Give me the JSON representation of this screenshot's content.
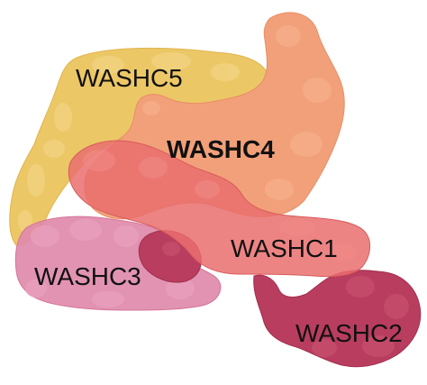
{
  "diagram": {
    "subunits": [
      {
        "id": "washc5",
        "label": "WASHC5",
        "color": "#ecc766",
        "emphasized": false
      },
      {
        "id": "washc4",
        "label": "WASHC4",
        "color": "#f2a079",
        "emphasized": true
      },
      {
        "id": "washc1",
        "label": "WASHC1",
        "color": "#ea6f6f",
        "emphasized": false
      },
      {
        "id": "washc3",
        "label": "WASHC3",
        "color": "#e08aab",
        "emphasized": false
      },
      {
        "id": "washc2",
        "label": "WASHC2",
        "color": "#b83d5e",
        "emphasized": false
      }
    ]
  }
}
